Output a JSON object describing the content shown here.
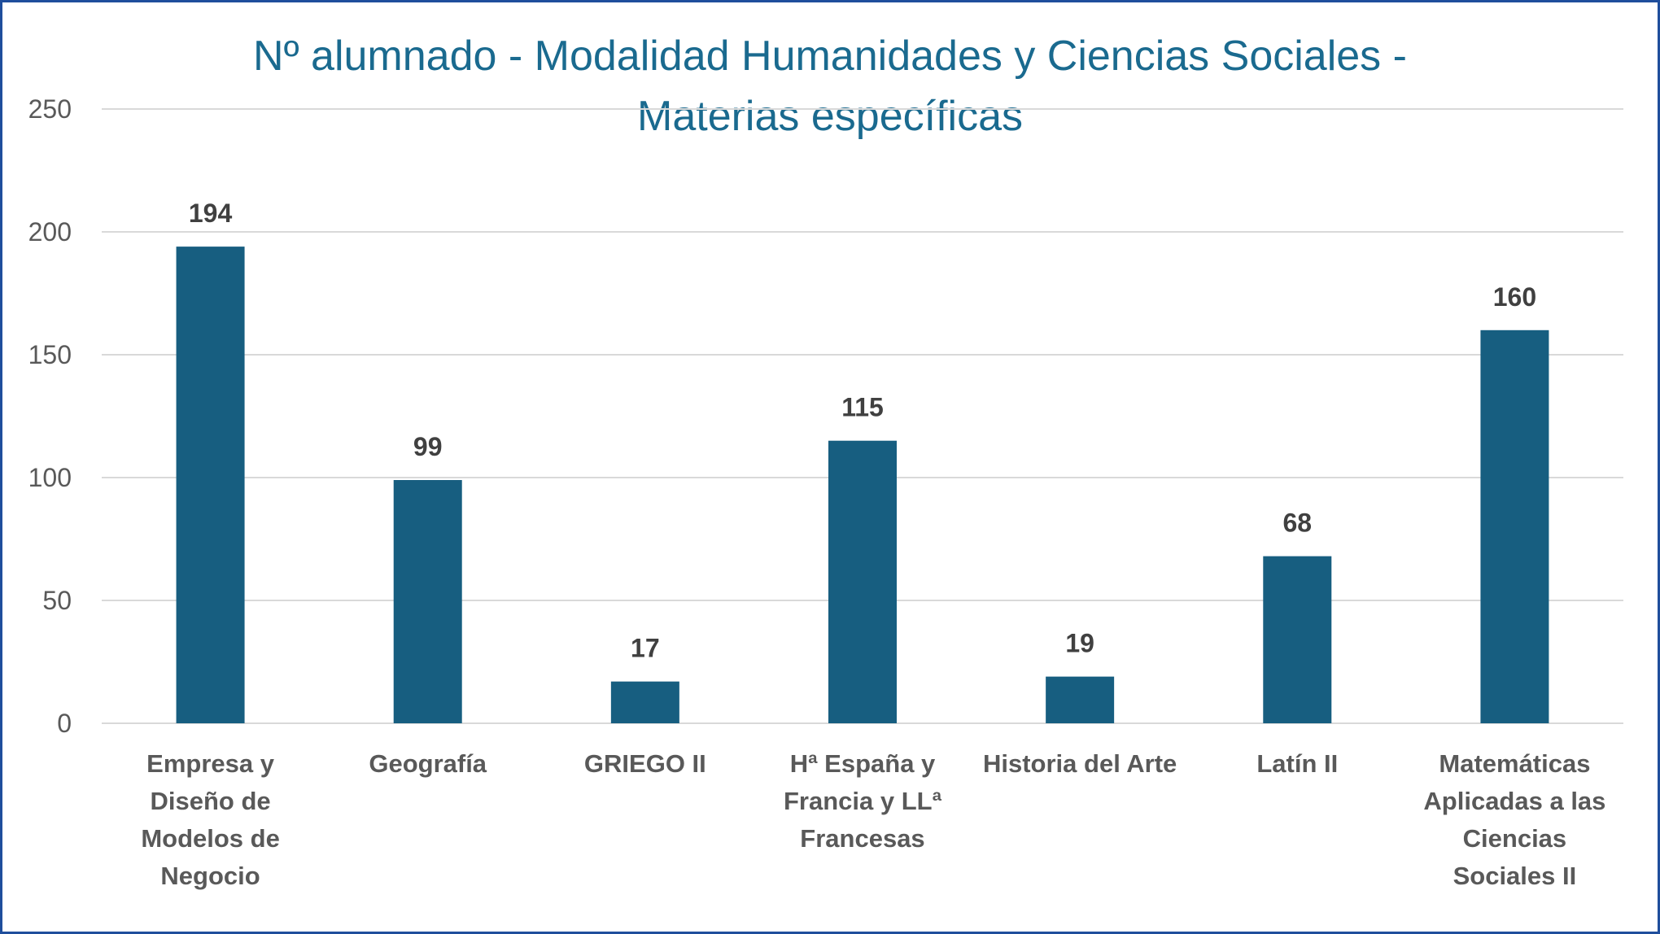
{
  "chart_data": {
    "type": "bar",
    "title": "Nº alumnado -  Modalidad Humanidades y Ciencias Sociales -\nMaterias específicas",
    "categories": [
      "Empresa y\nDiseño de\nModelos de\nNegocio",
      "Geografía",
      "GRIEGO II",
      "Hª España y\nFrancia y LLª\nFrancesas",
      "Historia del Arte",
      "Latín II",
      "Matemáticas\nAplicadas a las\nCiencias\nSociales II"
    ],
    "values": [
      194,
      99,
      17,
      115,
      19,
      68,
      160
    ],
    "data_labels": [
      "194",
      "99",
      "17",
      "115",
      "19",
      "68",
      "160"
    ],
    "ylim": [
      0,
      250
    ],
    "yticks": [
      0,
      50,
      100,
      150,
      200,
      250
    ],
    "ytick_labels": [
      "0",
      "50",
      "100",
      "150",
      "200",
      "250"
    ],
    "grid": true,
    "legend": "none",
    "colors": {
      "bar": "#175e80",
      "title": "#1a6a8f",
      "grid": "#d9d9d9",
      "axis_text": "#595959",
      "value_text": "#404040",
      "border": "#1f4e9c"
    }
  }
}
